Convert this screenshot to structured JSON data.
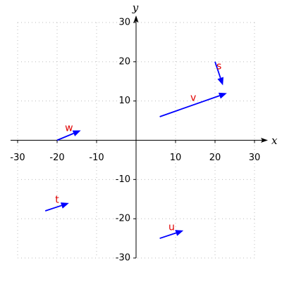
{
  "chart_data": {
    "type": "quiver",
    "xlabel": "x",
    "ylabel": "y",
    "xlim": [
      -30,
      30
    ],
    "ylim": [
      -30,
      30
    ],
    "xticks": [
      -30,
      -20,
      -10,
      10,
      20,
      30
    ],
    "yticks": [
      -30,
      -20,
      -10,
      10,
      20,
      30
    ],
    "grid": true,
    "color": "#0000ff",
    "label_color": "#e00000",
    "vectors": [
      {
        "name": "v",
        "x": 6,
        "y": 6,
        "dx": 17,
        "dy": 6
      },
      {
        "name": "s",
        "x": 20,
        "y": 20,
        "dx": 2,
        "dy": -6
      },
      {
        "name": "w",
        "x": -20,
        "y": 0,
        "dx": 6,
        "dy": 2.5
      },
      {
        "name": "t",
        "x": -23,
        "y": -18,
        "dx": 6,
        "dy": 2
      },
      {
        "name": "u",
        "x": 6,
        "y": -25,
        "dx": 6,
        "dy": 2
      }
    ]
  }
}
